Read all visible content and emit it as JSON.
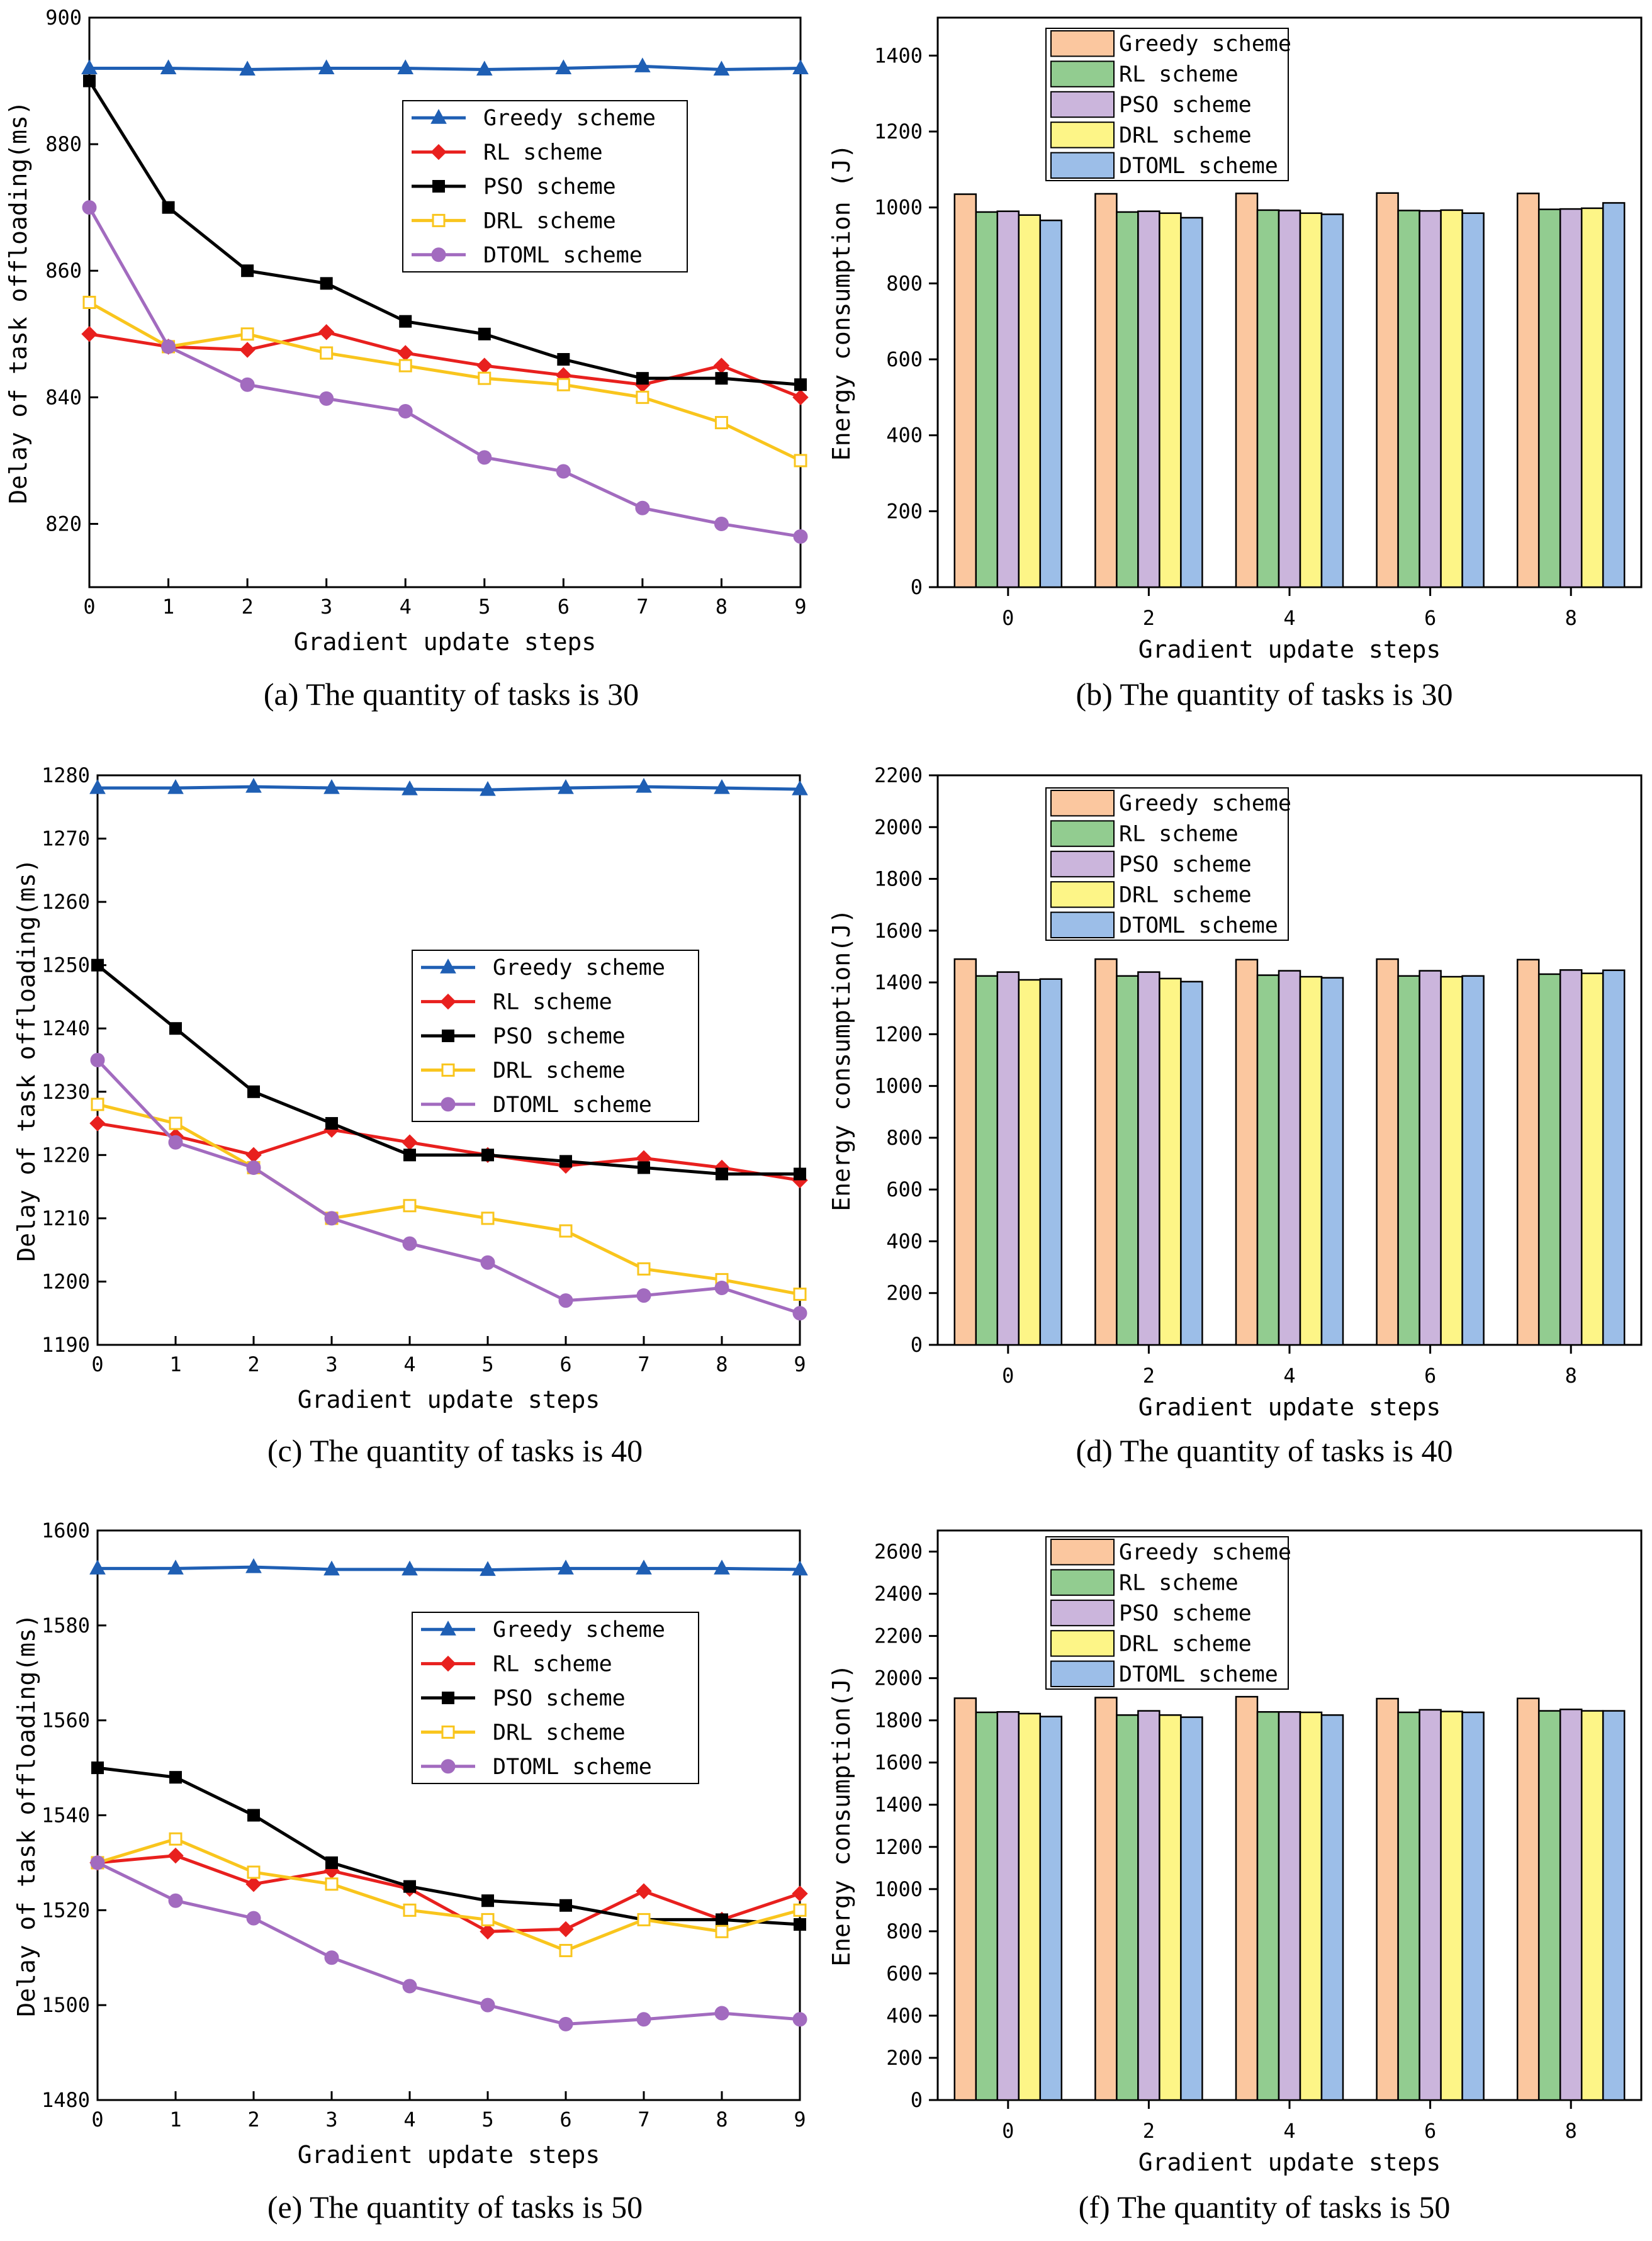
{
  "figure": {
    "colors": {
      "greedy_line": "#1f5fb4",
      "rl_line": "#e8201e",
      "pso_line": "#000000",
      "drl_line": "#f9c51d",
      "dtoml_line": "#a26bbf",
      "greedy_bar": "#fbc79f",
      "rl_bar": "#92cc90",
      "pso_bar": "#cbb5dc",
      "drl_bar": "#fdf587",
      "dtoml_bar": "#9cbee8"
    },
    "marker_shapes": [
      "triangle",
      "diamond",
      "square",
      "open-square",
      "circle"
    ]
  },
  "chart_data": [
    {
      "id": "a",
      "type": "line",
      "caption": "(a) The quantity of tasks is 30",
      "xlabel": "Gradient update steps",
      "ylabel": "Delay of task offloading(ms)",
      "x": [
        0,
        1,
        2,
        3,
        4,
        5,
        6,
        7,
        8,
        9
      ],
      "xticks": [
        0,
        1,
        2,
        3,
        4,
        5,
        6,
        7,
        8,
        9
      ],
      "ylim": [
        810,
        900
      ],
      "yticks": [
        820,
        840,
        860,
        880,
        900
      ],
      "legend_position": "upper-right",
      "series": [
        {
          "name": "Greedy scheme",
          "values": [
            892,
            892,
            891.8,
            892,
            892,
            891.8,
            892,
            892.3,
            891.8,
            892
          ]
        },
        {
          "name": "RL scheme",
          "values": [
            850,
            848,
            847.5,
            850.3,
            847,
            845,
            843.5,
            842,
            845,
            840
          ]
        },
        {
          "name": "PSO scheme",
          "values": [
            890,
            870,
            860,
            858,
            852,
            850,
            846,
            843,
            843,
            842
          ]
        },
        {
          "name": "DRL scheme",
          "values": [
            855,
            848,
            850,
            847,
            845,
            843,
            842,
            840,
            836,
            830
          ]
        },
        {
          "name": "DTOML scheme",
          "values": [
            870,
            848,
            842,
            839.8,
            837.8,
            830.5,
            828.3,
            822.5,
            820,
            818
          ]
        }
      ]
    },
    {
      "id": "b",
      "type": "bar",
      "caption": "(b) The quantity of tasks is 30",
      "xlabel": "Gradient update steps",
      "ylabel": "Energy consumption (J)",
      "categories": [
        "0",
        "2",
        "4",
        "6",
        "8"
      ],
      "ylim": [
        0,
        1500
      ],
      "yticks": [
        0,
        200,
        400,
        600,
        800,
        1000,
        1200,
        1400
      ],
      "legend_position": "top-left",
      "series": [
        {
          "name": "Greedy scheme",
          "values": [
            1035,
            1036,
            1037,
            1038,
            1037
          ]
        },
        {
          "name": "RL scheme",
          "values": [
            988,
            988,
            993,
            992,
            995
          ]
        },
        {
          "name": "PSO scheme",
          "values": [
            990,
            990,
            992,
            991,
            996
          ]
        },
        {
          "name": "DRL scheme",
          "values": [
            980,
            985,
            985,
            993,
            998
          ]
        },
        {
          "name": "DTOML scheme",
          "values": [
            966,
            973,
            982,
            985,
            1012
          ]
        }
      ]
    },
    {
      "id": "c",
      "type": "line",
      "caption": "(c) The quantity of tasks is 40",
      "xlabel": "Gradient update steps",
      "ylabel": "Delay of task offloading(ms)",
      "x": [
        0,
        1,
        2,
        3,
        4,
        5,
        6,
        7,
        8,
        9
      ],
      "xticks": [
        0,
        1,
        2,
        3,
        4,
        5,
        6,
        7,
        8,
        9
      ],
      "ylim": [
        1190,
        1280
      ],
      "yticks": [
        1190,
        1200,
        1210,
        1220,
        1230,
        1240,
        1250,
        1260,
        1270,
        1280
      ],
      "legend_position": "middle-right",
      "series": [
        {
          "name": "Greedy scheme",
          "values": [
            1278,
            1278,
            1278.2,
            1278,
            1277.8,
            1277.7,
            1278,
            1278.2,
            1278,
            1277.8
          ]
        },
        {
          "name": "RL scheme",
          "values": [
            1225,
            1223,
            1220,
            1224,
            1222,
            1220,
            1218.3,
            1219.5,
            1218,
            1216
          ]
        },
        {
          "name": "PSO scheme",
          "values": [
            1250,
            1240,
            1230,
            1225,
            1220,
            1220,
            1219,
            1218,
            1217,
            1217
          ]
        },
        {
          "name": "DRL scheme",
          "values": [
            1228,
            1225,
            1218,
            1210,
            1212,
            1210,
            1208,
            1202,
            1200.3,
            1198
          ]
        },
        {
          "name": "DTOML scheme",
          "values": [
            1235,
            1222,
            1218,
            1210,
            1206,
            1203,
            1197,
            1197.8,
            1199,
            1195
          ]
        }
      ]
    },
    {
      "id": "d",
      "type": "bar",
      "caption": "(d) The quantity of tasks is 40",
      "xlabel": "Gradient update steps",
      "ylabel": "Energy consumption(J)",
      "categories": [
        "0",
        "2",
        "4",
        "6",
        "8"
      ],
      "ylim": [
        0,
        2200
      ],
      "yticks": [
        0,
        200,
        400,
        600,
        800,
        1000,
        1200,
        1400,
        1600,
        1800,
        2000,
        2200
      ],
      "legend_position": "top-left",
      "series": [
        {
          "name": "Greedy scheme",
          "values": [
            1490,
            1490,
            1488,
            1490,
            1488
          ]
        },
        {
          "name": "RL scheme",
          "values": [
            1425,
            1425,
            1428,
            1425,
            1432
          ]
        },
        {
          "name": "PSO scheme",
          "values": [
            1440,
            1440,
            1445,
            1445,
            1448
          ]
        },
        {
          "name": "DRL scheme",
          "values": [
            1410,
            1415,
            1422,
            1422,
            1435
          ]
        },
        {
          "name": "DTOML scheme",
          "values": [
            1413,
            1403,
            1418,
            1425,
            1447
          ]
        }
      ]
    },
    {
      "id": "e",
      "type": "line",
      "caption": "(e) The quantity of tasks is 50",
      "xlabel": "Gradient update steps",
      "ylabel": "Delay of task offloading(ms)",
      "x": [
        0,
        1,
        2,
        3,
        4,
        5,
        6,
        7,
        8,
        9
      ],
      "xticks": [
        0,
        1,
        2,
        3,
        4,
        5,
        6,
        7,
        8,
        9
      ],
      "ylim": [
        1480,
        1600
      ],
      "yticks": [
        1480,
        1500,
        1520,
        1540,
        1560,
        1580,
        1600
      ],
      "legend_position": "upper-right",
      "series": [
        {
          "name": "Greedy scheme",
          "values": [
            1592,
            1592,
            1592.3,
            1591.8,
            1591.8,
            1591.7,
            1592,
            1592,
            1592,
            1591.8
          ]
        },
        {
          "name": "RL scheme",
          "values": [
            1530,
            1531.5,
            1525.5,
            1528.3,
            1524.5,
            1515.5,
            1516,
            1524,
            1518,
            1523.5
          ]
        },
        {
          "name": "PSO scheme",
          "values": [
            1550,
            1548,
            1540,
            1530,
            1525,
            1522,
            1521,
            1518,
            1518,
            1517
          ]
        },
        {
          "name": "DRL scheme",
          "values": [
            1530,
            1535,
            1528,
            1525.5,
            1520,
            1518,
            1511.5,
            1518,
            1515.5,
            1520
          ]
        },
        {
          "name": "DTOML scheme",
          "values": [
            1530,
            1522,
            1518.3,
            1510,
            1504,
            1500,
            1496,
            1497,
            1498.3,
            1497
          ]
        }
      ]
    },
    {
      "id": "f",
      "type": "bar",
      "caption": "(f) The quantity of tasks is 50",
      "xlabel": "Gradient update steps",
      "ylabel": "Energy consumption(J)",
      "categories": [
        "0",
        "2",
        "4",
        "6",
        "8"
      ],
      "ylim": [
        0,
        2700
      ],
      "yticks": [
        0,
        200,
        400,
        600,
        800,
        1000,
        1200,
        1400,
        1600,
        1800,
        2000,
        2200,
        2400,
        2600
      ],
      "legend_position": "top-left",
      "series": [
        {
          "name": "Greedy scheme",
          "values": [
            1905,
            1908,
            1912,
            1903,
            1904
          ]
        },
        {
          "name": "RL scheme",
          "values": [
            1838,
            1825,
            1840,
            1838,
            1845
          ]
        },
        {
          "name": "PSO scheme",
          "values": [
            1840,
            1845,
            1840,
            1850,
            1852
          ]
        },
        {
          "name": "DRL scheme",
          "values": [
            1832,
            1825,
            1838,
            1842,
            1845
          ]
        },
        {
          "name": "DTOML scheme",
          "values": [
            1818,
            1815,
            1825,
            1838,
            1845
          ]
        }
      ]
    }
  ]
}
